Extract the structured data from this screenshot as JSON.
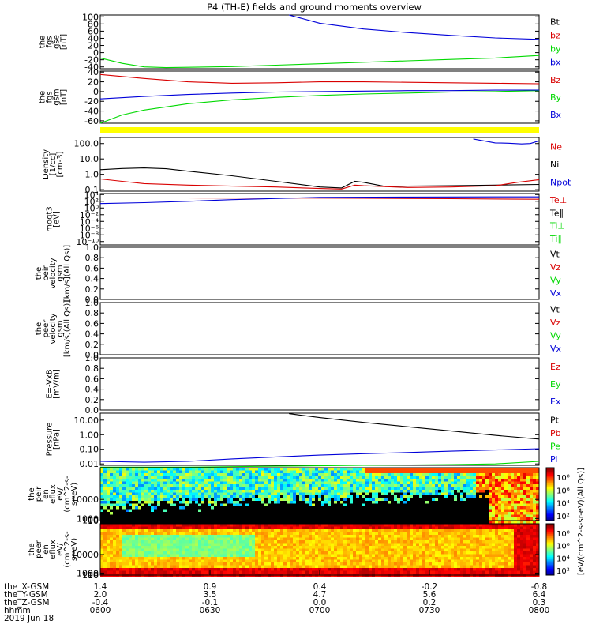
{
  "title": "P4 (TH-E) fields and ground moments overview",
  "colors": {
    "black": "#000000",
    "red": "#d90000",
    "green": "#00d900",
    "blue": "#0000d9",
    "yellow": "#ffff00"
  },
  "chart_data": [
    {
      "id": "fgs_gse",
      "type": "line",
      "ylabel_lines": [
        "the",
        "fgs",
        "gse",
        "[nT]"
      ],
      "ylim": [
        -45,
        105
      ],
      "yticks": [
        100,
        80,
        60,
        40,
        20,
        0,
        -20,
        -40
      ],
      "legend": [
        {
          "text": "Bt",
          "color": "black"
        },
        {
          "text": "bz",
          "color": "red"
        },
        {
          "text": "by",
          "color": "green"
        },
        {
          "text": "bx",
          "color": "blue"
        }
      ],
      "series": [
        {
          "name": "Bt",
          "color": "blue",
          "x": [
            0.43,
            0.5,
            0.6,
            0.7,
            0.8,
            0.9,
            1.0
          ],
          "y": [
            105,
            82,
            66,
            56,
            48,
            41,
            37
          ]
        },
        {
          "name": "by",
          "color": "green",
          "x": [
            0,
            0.05,
            0.1,
            0.15,
            0.2,
            0.3,
            0.4,
            0.5,
            0.6,
            0.7,
            0.8,
            0.9,
            1.0
          ],
          "y": [
            -15,
            -30,
            -40,
            -42,
            -41,
            -39,
            -35,
            -31,
            -27,
            -23,
            -19,
            -15,
            -8
          ]
        }
      ]
    },
    {
      "id": "fgs_gsm",
      "type": "line",
      "ylabel_lines": [
        "the",
        "fgs",
        "gsm",
        "[nT]"
      ],
      "ylim": [
        -65,
        42
      ],
      "yticks": [
        40,
        20,
        0,
        -20,
        -40,
        -60
      ],
      "legend": [
        {
          "text": "Bz",
          "color": "red"
        },
        {
          "text": "By",
          "color": "green"
        },
        {
          "text": "Bx",
          "color": "blue"
        }
      ],
      "series": [
        {
          "name": "Bz",
          "color": "red",
          "x": [
            0,
            0.1,
            0.2,
            0.3,
            0.4,
            0.5,
            0.6,
            0.7,
            0.8,
            0.9,
            1.0
          ],
          "y": [
            35,
            27,
            20,
            17,
            18,
            20,
            20,
            19,
            18,
            17,
            16
          ]
        },
        {
          "name": "By",
          "color": "green",
          "x": [
            0,
            0.05,
            0.1,
            0.2,
            0.3,
            0.4,
            0.5,
            0.6,
            0.7,
            0.8,
            0.9,
            1.0
          ],
          "y": [
            -65,
            -48,
            -38,
            -25,
            -17,
            -12,
            -8,
            -5,
            -3,
            -1,
            0,
            2
          ]
        },
        {
          "name": "Bx",
          "color": "blue",
          "x": [
            0,
            0.1,
            0.2,
            0.3,
            0.4,
            0.5,
            0.6,
            0.7,
            0.8,
            0.9,
            1.0
          ],
          "y": [
            -15,
            -10,
            -6,
            -3,
            -1,
            0,
            1,
            2,
            2,
            3,
            3
          ]
        }
      ]
    },
    {
      "id": "density",
      "type": "line",
      "scale": "log",
      "ylabel_lines": [
        "Density",
        "[1/cc]",
        "[cm-3]"
      ],
      "ylim": [
        0.08,
        250
      ],
      "yticks": [
        100,
        10,
        1,
        0.1
      ],
      "yticklabels": [
        "100.0",
        "10.0",
        "1.0",
        "0.1"
      ],
      "legend": [
        {
          "text": "Ne",
          "color": "red"
        },
        {
          "text": "Ni",
          "color": "black"
        },
        {
          "text": "Npot",
          "color": "blue"
        }
      ],
      "series": [
        {
          "name": "Ni",
          "color": "black",
          "x": [
            0,
            0.05,
            0.1,
            0.15,
            0.2,
            0.3,
            0.4,
            0.5,
            0.55,
            0.58,
            0.6,
            0.65,
            0.7,
            0.8,
            0.9,
            1.0
          ],
          "y": [
            2,
            2.4,
            2.6,
            2.3,
            1.6,
            0.8,
            0.35,
            0.15,
            0.13,
            0.35,
            0.3,
            0.16,
            0.17,
            0.18,
            0.2,
            0.22
          ]
        },
        {
          "name": "Ne",
          "color": "red",
          "x": [
            0,
            0.05,
            0.1,
            0.2,
            0.3,
            0.4,
            0.5,
            0.55,
            0.58,
            0.6,
            0.7,
            0.8,
            0.9,
            0.95,
            1.0
          ],
          "y": [
            0.5,
            0.35,
            0.25,
            0.2,
            0.17,
            0.15,
            0.12,
            0.11,
            0.2,
            0.18,
            0.14,
            0.15,
            0.18,
            0.3,
            0.45
          ]
        },
        {
          "name": "Npot",
          "color": "blue",
          "x": [
            0.85,
            0.88,
            0.9,
            0.93,
            0.96,
            0.98,
            1.0
          ],
          "y": [
            200,
            140,
            110,
            105,
            95,
            100,
            150
          ]
        }
      ]
    },
    {
      "id": "moqt3",
      "type": "line",
      "scale": "log",
      "ylabel_lines": [
        "moqt3",
        "[eV]"
      ],
      "ylim": [
        1e-11,
        20000.0
      ],
      "yticks": [
        10000.0,
        100.0,
        1,
        0.01,
        0.0001,
        1e-06,
        1e-08,
        1e-10
      ],
      "yticklabels": [
        "10⁴",
        "10²",
        "10⁰",
        "10⁻²",
        "10⁻⁴",
        "10⁻⁶",
        "10⁻⁸",
        "10⁻¹⁰"
      ],
      "legend": [
        {
          "text": "Te⊥",
          "color": "red"
        },
        {
          "text": "Te∥",
          "color": "black"
        },
        {
          "text": "Ti⊥",
          "color": "green"
        },
        {
          "text": "Ti∥",
          "color": "green"
        }
      ],
      "series": [
        {
          "name": "Te⊥",
          "color": "red",
          "x": [
            0,
            0.2,
            0.4,
            0.6,
            0.8,
            1.0
          ],
          "y": [
            1000,
            1000,
            900,
            800,
            600,
            400
          ]
        },
        {
          "name": "Ti",
          "color": "blue",
          "x": [
            0,
            0.1,
            0.2,
            0.3,
            0.5,
            0.7,
            0.9,
            1.0
          ],
          "y": [
            20,
            40,
            100,
            300,
            1500,
            1800,
            2000,
            2000
          ]
        }
      ]
    },
    {
      "id": "peir_velocity",
      "type": "line",
      "ylabel_lines": [
        "the",
        "peir",
        "velocity",
        "gsm",
        "[km/s](All Qs)]"
      ],
      "ylim": [
        0,
        1
      ],
      "yticks": [
        1.0,
        0.8,
        0.6,
        0.4,
        0.2,
        0.0
      ],
      "yticklabels": [
        "1.0",
        "0.8",
        "0.6",
        "0.4",
        "0.2",
        "0.0"
      ],
      "legend": [
        {
          "text": "Vt",
          "color": "black"
        },
        {
          "text": "Vz",
          "color": "red"
        },
        {
          "text": "Vy",
          "color": "green"
        },
        {
          "text": "Vx",
          "color": "blue"
        }
      ],
      "series": []
    },
    {
      "id": "peer_velocity",
      "type": "line",
      "ylabel_lines": [
        "the",
        "peer",
        "velocity",
        "gsm",
        "[km/s](All Qs)]"
      ],
      "ylim": [
        0,
        1
      ],
      "yticks": [
        1.0,
        0.8,
        0.6,
        0.4,
        0.2,
        0.0
      ],
      "yticklabels": [
        "1.0",
        "0.8",
        "0.6",
        "0.4",
        "0.2",
        "0.0"
      ],
      "legend": [
        {
          "text": "Vt",
          "color": "black"
        },
        {
          "text": "Vz",
          "color": "red"
        },
        {
          "text": "Vy",
          "color": "green"
        },
        {
          "text": "Vx",
          "color": "blue"
        }
      ],
      "series": []
    },
    {
      "id": "efield",
      "type": "line",
      "ylabel_lines": [
        "E=-VxB",
        "[mV/m]"
      ],
      "ylim": [
        0,
        1
      ],
      "yticks": [
        1.0,
        0.8,
        0.6,
        0.4,
        0.2,
        0.0
      ],
      "yticklabels": [
        "1.0",
        "0.8",
        "0.6",
        "0.4",
        "0.2",
        "0.0"
      ],
      "legend": [
        {
          "text": "Ez",
          "color": "red"
        },
        {
          "text": "Ey",
          "color": "green"
        },
        {
          "text": "Ex",
          "color": "blue"
        }
      ],
      "series": []
    },
    {
      "id": "pressure",
      "type": "line",
      "scale": "log",
      "ylabel_lines": [
        "Pressure",
        "[nPa]"
      ],
      "ylim": [
        0.008,
        30
      ],
      "yticks": [
        10,
        1,
        0.1,
        0.01
      ],
      "yticklabels": [
        "10.00",
        "1.00",
        "0.10",
        "0.01"
      ],
      "legend": [
        {
          "text": "Pt",
          "color": "black"
        },
        {
          "text": "Pb",
          "color": "red"
        },
        {
          "text": "Pe",
          "color": "green"
        },
        {
          "text": "Pi",
          "color": "blue"
        }
      ],
      "series": [
        {
          "name": "Pt",
          "color": "black",
          "x": [
            0.43,
            0.5,
            0.6,
            0.7,
            0.8,
            0.9,
            1.0
          ],
          "y": [
            28,
            15,
            7,
            3.5,
            1.8,
            0.9,
            0.5
          ]
        },
        {
          "name": "Pi",
          "color": "blue",
          "x": [
            0,
            0.1,
            0.2,
            0.3,
            0.4,
            0.5,
            0.6,
            0.7,
            0.8,
            0.9,
            1.0
          ],
          "y": [
            0.015,
            0.013,
            0.015,
            0.022,
            0.03,
            0.04,
            0.05,
            0.06,
            0.075,
            0.09,
            0.11
          ]
        },
        {
          "name": "Pe",
          "color": "green",
          "x": [
            0,
            0.2,
            0.4,
            0.6,
            0.8,
            0.9,
            1.0
          ],
          "y": [
            0.006,
            0.006,
            0.007,
            0.008,
            0.009,
            0.01,
            0.015
          ]
        }
      ]
    },
    {
      "id": "peir_eflux",
      "type": "heatmap",
      "ylabel_lines": [
        "the",
        "peir",
        "en",
        "eflux",
        "eV/",
        "(cm^2-s-",
        "sr-eV)"
      ],
      "ylim": [
        5,
        25000
      ],
      "yticks": [
        10000,
        1000,
        100,
        10
      ],
      "yticklabels": [
        "10000",
        "1000",
        "100",
        "10"
      ]
    },
    {
      "id": "peer_eflux",
      "type": "heatmap",
      "ylabel_lines": [
        "the",
        "peer",
        "en",
        "eflux",
        "eV/",
        "(cm^2-s-",
        "sr-eV)"
      ],
      "ylim": [
        5,
        25000
      ],
      "yticks": [
        10000,
        1000,
        100,
        10
      ],
      "yticklabels": [
        "10000",
        "1000",
        "100",
        "10"
      ]
    }
  ],
  "colorbars": [
    {
      "ticklabels": [
        "10⁸",
        "10⁶",
        "10⁴",
        "10²"
      ]
    },
    {
      "ticklabels": [
        "10⁸",
        "10⁶",
        "10⁴",
        "10²"
      ]
    }
  ],
  "colorbar_label": "[eV/(cm^2-s-sr-eV)(All Qs)]",
  "xaxis": {
    "row_labels": [
      "the_X-GSM",
      "the_Y-GSM",
      "the_Z-GSM",
      "hhmm",
      "2019 Jun 18"
    ],
    "columns": [
      {
        "x": 0.0,
        "vals": [
          "1.4",
          "2.0",
          "-0.4",
          "0600"
        ]
      },
      {
        "x": 0.25,
        "vals": [
          "0.9",
          "3.5",
          "-0.1",
          "0630"
        ]
      },
      {
        "x": 0.5,
        "vals": [
          "0.4",
          "4.7",
          "0.0",
          "0700"
        ]
      },
      {
        "x": 0.75,
        "vals": [
          "-0.2",
          "5.6",
          "0.2",
          "0730"
        ]
      },
      {
        "x": 1.0,
        "vals": [
          "-0.8",
          "6.4",
          "0.3",
          "0800"
        ]
      }
    ]
  }
}
